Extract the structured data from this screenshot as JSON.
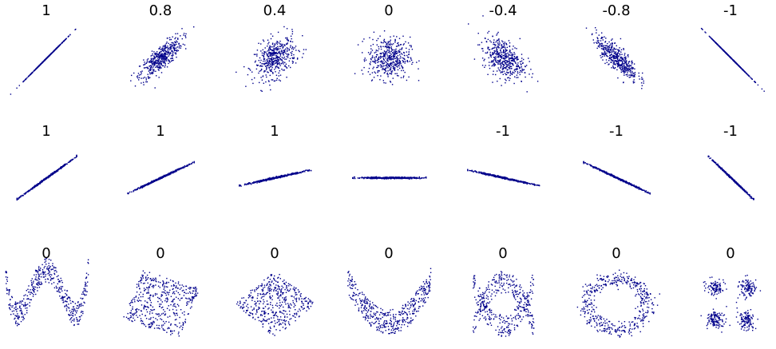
{
  "rows": [
    [
      1,
      0.8,
      0.4,
      0,
      -0.4,
      -0.8,
      -1
    ],
    [
      1,
      1,
      1,
      null,
      -1,
      -1,
      -1
    ],
    [
      0,
      0,
      0,
      0,
      0,
      0,
      0
    ]
  ]
}
